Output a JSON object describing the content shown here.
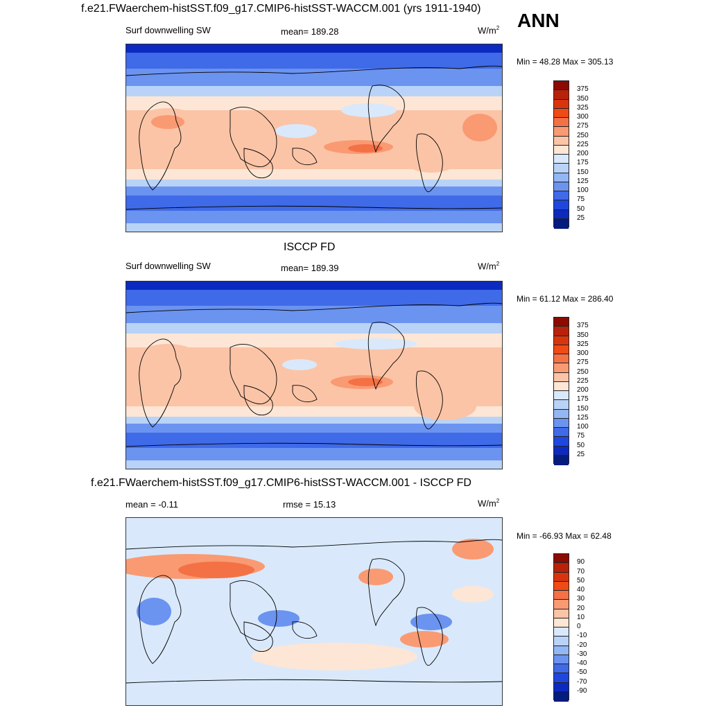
{
  "season": "ANN",
  "units_base": "W/m",
  "units_exp": "2",
  "panels": [
    {
      "title": "f.e21.FWaerchem-histSST.f09_g17.CMIP6-histSST-WACCM.001 (yrs 1911-1940)",
      "left_label": "Surf downwelling SW",
      "center_label": "mean= 189.28",
      "minmax": "Min =  48.28 Max = 305.13",
      "colorbar": {
        "ticks": [
          "375",
          "350",
          "325",
          "300",
          "275",
          "250",
          "225",
          "200",
          "175",
          "150",
          "125",
          "100",
          "75",
          "50",
          "25"
        ],
        "colors": [
          "#8c0a00",
          "#b8210a",
          "#d8350f",
          "#f04a16",
          "#f47145",
          "#f99a73",
          "#fbc4a6",
          "#fde6d5",
          "#d9e9fb",
          "#b8d3f7",
          "#93b6f4",
          "#6b93f0",
          "#3f6ae8",
          "#1f47de",
          "#0c2ac0",
          "#061b7e"
        ]
      }
    },
    {
      "title": "ISCCP FD",
      "left_label": "Surf downwelling SW",
      "center_label": "mean= 189.39",
      "minmax": "Min =  61.12 Max = 286.40",
      "colorbar": {
        "ticks": [
          "375",
          "350",
          "325",
          "300",
          "275",
          "250",
          "225",
          "200",
          "175",
          "150",
          "125",
          "100",
          "75",
          "50",
          "25"
        ],
        "colors": [
          "#8c0a00",
          "#b8210a",
          "#d8350f",
          "#f04a16",
          "#f47145",
          "#f99a73",
          "#fbc4a6",
          "#fde6d5",
          "#d9e9fb",
          "#b8d3f7",
          "#93b6f4",
          "#6b93f0",
          "#3f6ae8",
          "#1f47de",
          "#0c2ac0",
          "#061b7e"
        ]
      }
    },
    {
      "title": "f.e21.FWaerchem-histSST.f09_g17.CMIP6-histSST-WACCM.001 - ISCCP FD",
      "left_label": "mean =  -0.11",
      "center_label": "rmse =  15.13",
      "minmax": "Min = -66.93 Max =  62.48",
      "colorbar": {
        "ticks": [
          "90",
          "70",
          "50",
          "40",
          "30",
          "20",
          "10",
          "0",
          "-10",
          "-20",
          "-30",
          "-40",
          "-50",
          "-70",
          "-90"
        ],
        "colors": [
          "#8c0a00",
          "#b8210a",
          "#d8350f",
          "#f04a16",
          "#f47145",
          "#f99a73",
          "#fbc4a6",
          "#fde6d5",
          "#d9e9fb",
          "#b8d3f7",
          "#93b6f4",
          "#6b93f0",
          "#3f6ae8",
          "#1f47de",
          "#0c2ac0",
          "#061b7e"
        ]
      }
    }
  ],
  "field_colors": {
    "deep_blue": "#0c2ac0",
    "blue": "#3f6ae8",
    "mid_blue": "#6b93f0",
    "light_blue": "#b8d3f7",
    "pale_blue": "#d9e9fb",
    "pale_peach": "#fde6d5",
    "peach": "#fbc4a6",
    "salmon": "#f99a73",
    "orange": "#f47145",
    "red_orange": "#f04a16",
    "coastline": "#000000"
  }
}
